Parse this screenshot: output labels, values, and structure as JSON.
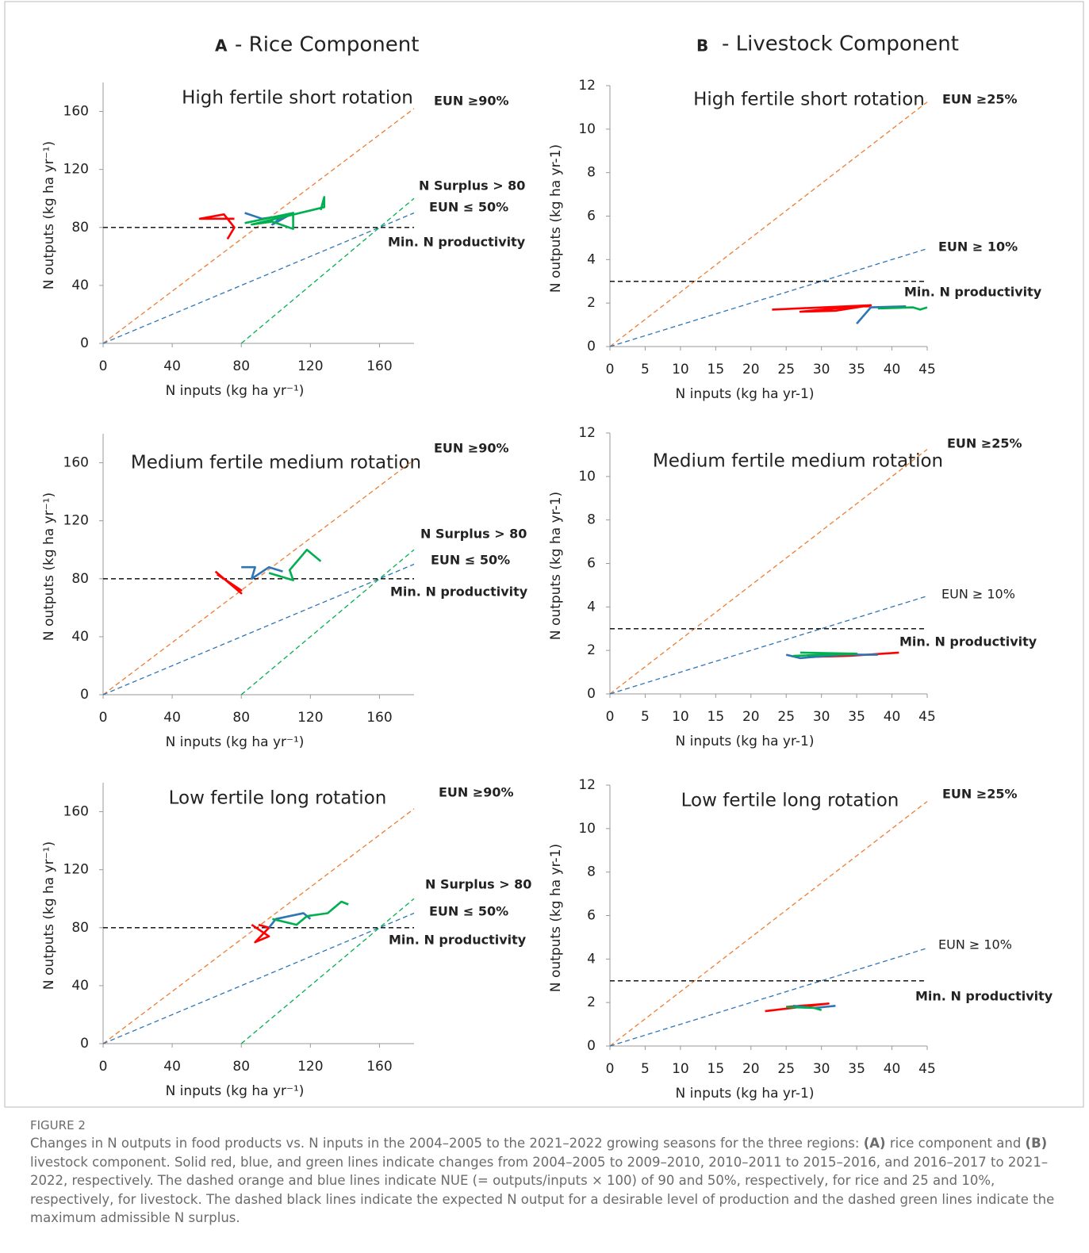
{
  "columns": [
    {
      "letter": "A",
      "title": "- Rice Component"
    },
    {
      "letter": "B",
      "title": "- Livestock Component"
    }
  ],
  "figure_label": "FIGURE 2",
  "caption": [
    "Changes in N outputs in food products vs. N inputs in the 2004–2005 to the 2021–2022 growing seasons for the three regions: ",
    "(A)",
    " rice component and ",
    "(B)",
    " livestock component. Solid red, blue, and green lines indicate changes from 2004–2005 to 2009–2010, 2010–2011 to 2015–2016, and 2016–2017 to 2021–2022, respectively. The dashed orange and blue lines indicate NUE (= outputs/inputs × 100) of 90 and 50%, respectively, for rice and 25 and 10%, respectively, for livestock. The dashed black lines indicate the expected N output for a desirable level of production and the dashed green lines indicate the maximum admissible N surplus."
  ],
  "chart_data": [
    {
      "type": "line",
      "title": "High fertile short rotation",
      "x_label": "N inputs (kg ha yr⁻¹)",
      "y_label": "N outputs (kg ha yr⁻¹)",
      "xlim": [
        0,
        180
      ],
      "ylim": [
        0,
        180
      ],
      "xticks": [
        0,
        40,
        80,
        120,
        160
      ],
      "yticks": [
        0,
        40,
        80,
        120,
        160
      ],
      "annotations": [
        "EUN ≥90%",
        "N Surplus > 80",
        "EUN ≤ 50%",
        "Min. N productivity"
      ],
      "series": [
        {
          "color": "#ed7d31",
          "dashed": true,
          "x": [
            0,
            180
          ],
          "values": [
            0,
            162
          ]
        },
        {
          "color": "#2e75b6",
          "dashed": true,
          "x": [
            0,
            180
          ],
          "values": [
            0,
            90
          ]
        },
        {
          "color": "#00b050",
          "dashed": true,
          "x": [
            80,
            180
          ],
          "values": [
            0,
            100
          ]
        },
        {
          "color": "#000000",
          "dashed": true,
          "x": [
            0,
            180
          ],
          "values": [
            80,
            80
          ]
        },
        {
          "color": "#ff0000",
          "dashed": false,
          "x": [
            76,
            56,
            70,
            76,
            72
          ],
          "values": [
            86,
            86,
            89,
            80,
            72
          ]
        },
        {
          "color": "#2e75b6",
          "dashed": false,
          "x": [
            82,
            92,
            104,
            98,
            110,
            108
          ],
          "values": [
            90,
            86,
            88,
            82,
            90,
            89
          ]
        },
        {
          "color": "#00b050",
          "dashed": false,
          "x": [
            82,
            110,
            110,
            98,
            86,
            128,
            128,
            126
          ],
          "values": [
            83,
            90,
            79,
            84,
            82,
            94,
            101,
            92
          ]
        }
      ]
    },
    {
      "type": "line",
      "title": "High fertile short rotation",
      "x_label": "N inputs (kg ha yr-1)",
      "y_label": "N outputs (kg ha yr-1)",
      "xlim": [
        0,
        45
      ],
      "ylim": [
        0,
        12
      ],
      "xticks": [
        0,
        5,
        10,
        15,
        20,
        25,
        30,
        35,
        40,
        45
      ],
      "yticks": [
        0,
        2,
        4,
        6,
        8,
        10,
        12
      ],
      "annotations": [
        "EUN ≥25%",
        "EUN ≥ 10%",
        "Min. N productivity"
      ],
      "series": [
        {
          "color": "#ed7d31",
          "dashed": true,
          "x": [
            0,
            45
          ],
          "values": [
            0,
            11.25
          ]
        },
        {
          "color": "#2e75b6",
          "dashed": true,
          "x": [
            0,
            45
          ],
          "values": [
            0,
            4.5
          ]
        },
        {
          "color": "#000000",
          "dashed": true,
          "x": [
            0,
            45
          ],
          "values": [
            3,
            3
          ]
        },
        {
          "color": "#ff0000",
          "dashed": false,
          "x": [
            23,
            37,
            32,
            27,
            35,
            37
          ],
          "values": [
            1.7,
            1.9,
            1.65,
            1.6,
            1.85,
            1.85
          ]
        },
        {
          "color": "#2e75b6",
          "dashed": false,
          "x": [
            35,
            37,
            42
          ],
          "values": [
            1.05,
            1.8,
            1.85
          ]
        },
        {
          "color": "#00b050",
          "dashed": false,
          "x": [
            38,
            43,
            44,
            45
          ],
          "values": [
            1.75,
            1.8,
            1.7,
            1.8
          ]
        }
      ]
    },
    {
      "type": "line",
      "title": "Medium fertile medium rotation",
      "x_label": "N inputs (kg ha yr⁻¹)",
      "y_label": "N outputs (kg ha yr⁻¹)",
      "xlim": [
        0,
        180
      ],
      "ylim": [
        0,
        180
      ],
      "xticks": [
        0,
        40,
        80,
        120,
        160
      ],
      "yticks": [
        0,
        40,
        80,
        120,
        160
      ],
      "annotations": [
        "EUN ≥90%",
        "N Surplus > 80",
        "EUN ≤ 50%",
        "Min. N productivity"
      ],
      "series": [
        {
          "color": "#ed7d31",
          "dashed": true,
          "x": [
            0,
            180
          ],
          "values": [
            0,
            162
          ]
        },
        {
          "color": "#2e75b6",
          "dashed": true,
          "x": [
            0,
            180
          ],
          "values": [
            0,
            90
          ]
        },
        {
          "color": "#00b050",
          "dashed": true,
          "x": [
            80,
            180
          ],
          "values": [
            0,
            100
          ]
        },
        {
          "color": "#000000",
          "dashed": true,
          "x": [
            0,
            180
          ],
          "values": [
            80,
            80
          ]
        },
        {
          "color": "#ff0000",
          "dashed": false,
          "x": [
            65,
            80,
            70,
            80,
            66
          ],
          "values": [
            85,
            70,
            80,
            72,
            83
          ]
        },
        {
          "color": "#2e75b6",
          "dashed": false,
          "x": [
            80,
            88,
            86,
            96,
            104
          ],
          "values": [
            88,
            88,
            80,
            88,
            85
          ]
        },
        {
          "color": "#00b050",
          "dashed": false,
          "x": [
            96,
            110,
            108,
            118,
            126
          ],
          "values": [
            84,
            79,
            86,
            100,
            92
          ]
        }
      ]
    },
    {
      "type": "line",
      "title": "Medium fertile medium rotation",
      "x_label": "N inputs (kg ha yr-1)",
      "y_label": "N outputs (kg ha yr-1)",
      "xlim": [
        0,
        45
      ],
      "ylim": [
        0,
        12
      ],
      "xticks": [
        0,
        5,
        10,
        15,
        20,
        25,
        30,
        35,
        40,
        45
      ],
      "yticks": [
        0,
        2,
        4,
        6,
        8,
        10,
        12
      ],
      "annotations": [
        "EUN ≥25%",
        "EUN ≥ 10%",
        "Min. N productivity"
      ],
      "series": [
        {
          "color": "#ed7d31",
          "dashed": true,
          "x": [
            0,
            45
          ],
          "values": [
            0,
            11.25
          ]
        },
        {
          "color": "#2e75b6",
          "dashed": true,
          "x": [
            0,
            45
          ],
          "values": [
            0,
            4.5
          ]
        },
        {
          "color": "#000000",
          "dashed": true,
          "x": [
            0,
            45
          ],
          "values": [
            3,
            3
          ]
        },
        {
          "color": "#ff0000",
          "dashed": false,
          "x": [
            28,
            34,
            41
          ],
          "values": [
            1.7,
            1.75,
            1.9
          ]
        },
        {
          "color": "#2e75b6",
          "dashed": false,
          "x": [
            25,
            27,
            33,
            38
          ],
          "values": [
            1.8,
            1.65,
            1.8,
            1.8
          ]
        },
        {
          "color": "#00b050",
          "dashed": false,
          "x": [
            27,
            35,
            26
          ],
          "values": [
            1.9,
            1.85,
            1.75
          ]
        }
      ]
    },
    {
      "type": "line",
      "title": "Low fertile long rotation",
      "x_label": "N inputs (kg ha yr⁻¹)",
      "y_label": "N outputs (kg ha yr⁻¹)",
      "xlim": [
        0,
        180
      ],
      "ylim": [
        0,
        180
      ],
      "xticks": [
        0,
        40,
        80,
        120,
        160
      ],
      "yticks": [
        0,
        40,
        80,
        120,
        160
      ],
      "annotations": [
        "EUN ≥90%",
        "N Surplus > 80",
        "EUN ≤ 50%",
        "Min. N productivity"
      ],
      "series": [
        {
          "color": "#ed7d31",
          "dashed": true,
          "x": [
            0,
            180
          ],
          "values": [
            0,
            162
          ]
        },
        {
          "color": "#2e75b6",
          "dashed": true,
          "x": [
            0,
            180
          ],
          "values": [
            0,
            90
          ]
        },
        {
          "color": "#00b050",
          "dashed": true,
          "x": [
            80,
            180
          ],
          "values": [
            0,
            100
          ]
        },
        {
          "color": "#000000",
          "dashed": true,
          "x": [
            0,
            180
          ],
          "values": [
            80,
            80
          ]
        },
        {
          "color": "#ff0000",
          "dashed": false,
          "x": [
            86,
            96,
            88,
            96,
            90
          ],
          "values": [
            82,
            74,
            70,
            80,
            82
          ]
        },
        {
          "color": "#2e75b6",
          "dashed": false,
          "x": [
            96,
            100,
            116,
            120
          ],
          "values": [
            80,
            86,
            90,
            86
          ]
        },
        {
          "color": "#00b050",
          "dashed": false,
          "x": [
            98,
            112,
            118,
            130,
            138,
            142
          ],
          "values": [
            86,
            82,
            88,
            90,
            98,
            96
          ]
        }
      ]
    },
    {
      "type": "line",
      "title": "Low fertile long rotation",
      "x_label": "N inputs (kg ha yr-1)",
      "y_label": "N outputs (kg ha yr-1)",
      "xlim": [
        0,
        45
      ],
      "ylim": [
        0,
        12
      ],
      "xticks": [
        0,
        5,
        10,
        15,
        20,
        25,
        30,
        35,
        40,
        45
      ],
      "yticks": [
        0,
        2,
        4,
        6,
        8,
        10,
        12
      ],
      "annotations": [
        "EUN ≥25%",
        "EUN ≥ 10%",
        "Min. N productivity"
      ],
      "series": [
        {
          "color": "#ed7d31",
          "dashed": true,
          "x": [
            0,
            45
          ],
          "values": [
            0,
            11.25
          ]
        },
        {
          "color": "#2e75b6",
          "dashed": true,
          "x": [
            0,
            45
          ],
          "values": [
            0,
            4.5
          ]
        },
        {
          "color": "#000000",
          "dashed": true,
          "x": [
            0,
            45
          ],
          "values": [
            3,
            3
          ]
        },
        {
          "color": "#ff0000",
          "dashed": false,
          "x": [
            22,
            31,
            25
          ],
          "values": [
            1.6,
            1.95,
            1.8
          ]
        },
        {
          "color": "#2e75b6",
          "dashed": false,
          "x": [
            26,
            29,
            32
          ],
          "values": [
            1.85,
            1.75,
            1.85
          ]
        },
        {
          "color": "#00b050",
          "dashed": false,
          "x": [
            25,
            29,
            30
          ],
          "values": [
            1.8,
            1.75,
            1.65
          ]
        }
      ]
    }
  ]
}
